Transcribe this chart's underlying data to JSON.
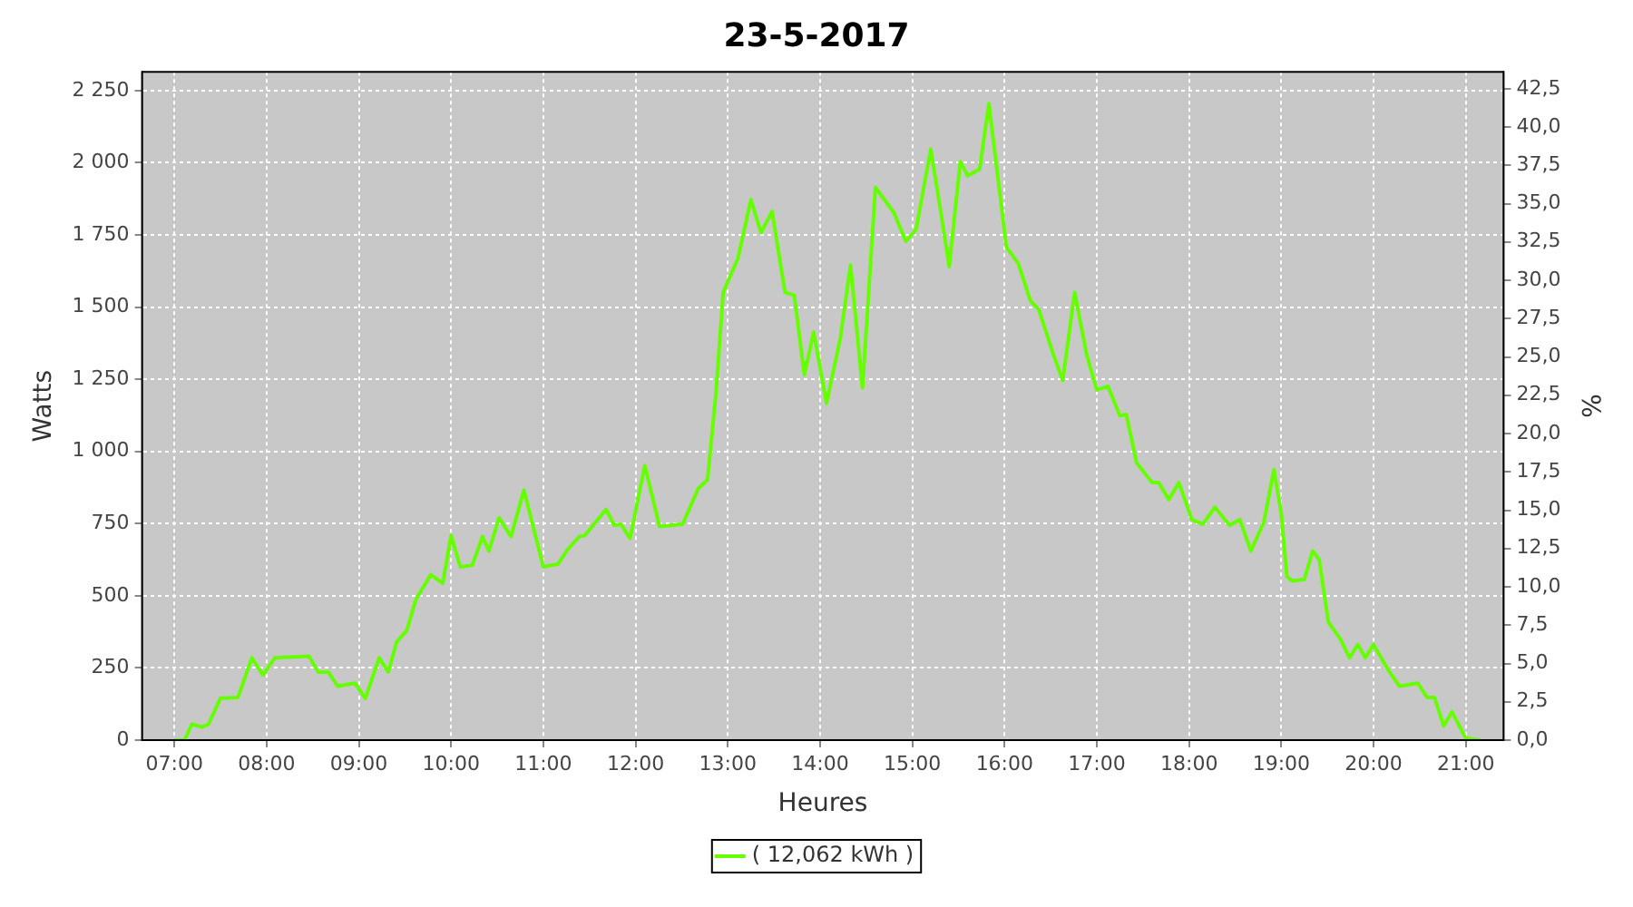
{
  "chart_data": {
    "type": "line",
    "title": "23-5-2017",
    "xlabel": "Heures",
    "ylabel": "Watts",
    "y2label": "%",
    "xlim": [
      6.65,
      21.41
    ],
    "xticks": [
      {
        "value": 7,
        "label": "07:00"
      },
      {
        "value": 8,
        "label": "08:00"
      },
      {
        "value": 9,
        "label": "09:00"
      },
      {
        "value": 10,
        "label": "10:00"
      },
      {
        "value": 11,
        "label": "11:00"
      },
      {
        "value": 12,
        "label": "12:00"
      },
      {
        "value": 13,
        "label": "13:00"
      },
      {
        "value": 14,
        "label": "14:00"
      },
      {
        "value": 15,
        "label": "15:00"
      },
      {
        "value": 16,
        "label": "16:00"
      },
      {
        "value": 17,
        "label": "17:00"
      },
      {
        "value": 18,
        "label": "18:00"
      },
      {
        "value": 19,
        "label": "19:00"
      },
      {
        "value": 20,
        "label": "20:00"
      },
      {
        "value": 21,
        "label": "21:00"
      }
    ],
    "ylim": [
      0,
      2315
    ],
    "yticks": [
      0,
      250,
      500,
      750,
      {
        "value": 1000,
        "label": "1 000"
      },
      {
        "value": 1250,
        "label": "1 250"
      },
      {
        "value": 1500,
        "label": "1 500"
      },
      {
        "value": 1750,
        "label": "1 750"
      },
      {
        "value": 2000,
        "label": "2 000"
      },
      {
        "value": 2250,
        "label": "2 250"
      }
    ],
    "y2lim": [
      0,
      43.6
    ],
    "y2ticks": [
      {
        "value": 0,
        "label": "0,0"
      },
      {
        "value": 2.5,
        "label": "2,5"
      },
      {
        "value": 5,
        "label": "5,0"
      },
      {
        "value": 7.5,
        "label": "7,5"
      },
      {
        "value": 10,
        "label": "10,0"
      },
      {
        "value": 12.5,
        "label": "12,5"
      },
      {
        "value": 15,
        "label": "15,0"
      },
      {
        "value": 17.5,
        "label": "17,5"
      },
      {
        "value": 20,
        "label": "20,0"
      },
      {
        "value": 22.5,
        "label": "22,5"
      },
      {
        "value": 25,
        "label": "25,0"
      },
      {
        "value": 27.5,
        "label": "27,5"
      },
      {
        "value": 30,
        "label": "30,0"
      },
      {
        "value": 32.5,
        "label": "32,5"
      },
      {
        "value": 35,
        "label": "35,0"
      },
      {
        "value": 37.5,
        "label": "37,5"
      },
      {
        "value": 40,
        "label": "40,0"
      },
      {
        "value": 42.5,
        "label": "42,5"
      }
    ],
    "grid": true,
    "legend": "bottom",
    "marker": "none",
    "line_style": "solid",
    "series": [
      {
        "name": "( 12,062 kWh )",
        "color": "#66ff00",
        "x": [
          7.0,
          7.11,
          7.19,
          7.3,
          7.37,
          7.5,
          7.69,
          7.84,
          7.96,
          8.09,
          8.46,
          8.56,
          8.67,
          8.77,
          8.96,
          9.07,
          9.22,
          9.32,
          9.41,
          9.52,
          9.62,
          9.78,
          9.91,
          10.0,
          10.1,
          10.23,
          10.34,
          10.41,
          10.52,
          10.65,
          10.79,
          11.0,
          11.16,
          11.26,
          11.39,
          11.45,
          11.68,
          11.77,
          11.84,
          11.94,
          12.1,
          12.26,
          12.51,
          12.68,
          12.78,
          12.87,
          12.95,
          13.11,
          13.25,
          13.36,
          13.48,
          13.62,
          13.72,
          13.83,
          13.93,
          14.07,
          14.22,
          14.33,
          14.46,
          14.6,
          14.8,
          14.93,
          15.04,
          15.2,
          15.31,
          15.4,
          15.52,
          15.6,
          15.73,
          15.83,
          16.02,
          16.15,
          16.28,
          16.37,
          16.53,
          16.63,
          16.76,
          16.89,
          17.0,
          17.12,
          17.25,
          17.32,
          17.43,
          17.6,
          17.67,
          17.78,
          17.89,
          18.03,
          18.15,
          18.28,
          18.44,
          18.55,
          18.67,
          18.81,
          18.92,
          19.0,
          19.06,
          19.12,
          19.25,
          19.34,
          19.41,
          19.51,
          19.64,
          19.74,
          19.83,
          19.91,
          20.0,
          20.16,
          20.28,
          20.48,
          20.58,
          20.66,
          20.76,
          20.85,
          21.0,
          21.16
        ],
        "values": [
          0,
          0,
          55,
          45,
          55,
          145,
          148,
          285,
          226,
          285,
          291,
          236,
          236,
          187,
          197,
          144,
          285,
          236,
          340,
          380,
          488,
          573,
          543,
          709,
          600,
          606,
          705,
          655,
          770,
          705,
          866,
          600,
          610,
          659,
          705,
          709,
          799,
          744,
          748,
          699,
          951,
          740,
          748,
          872,
          902,
          1197,
          1551,
          1669,
          1872,
          1758,
          1831,
          1551,
          1541,
          1265,
          1413,
          1167,
          1393,
          1646,
          1220,
          1915,
          1827,
          1728,
          1768,
          2047,
          1827,
          1640,
          2004,
          1955,
          1978,
          2205,
          1708,
          1650,
          1522,
          1492,
          1335,
          1246,
          1551,
          1335,
          1213,
          1226,
          1124,
          1128,
          961,
          892,
          892,
          833,
          892,
          764,
          748,
          807,
          744,
          764,
          655,
          754,
          937,
          783,
          567,
          551,
          557,
          655,
          626,
          409,
          350,
          285,
          331,
          285,
          331,
          242,
          187,
          197,
          148,
          148,
          49,
          98,
          6,
          0
        ]
      }
    ]
  }
}
